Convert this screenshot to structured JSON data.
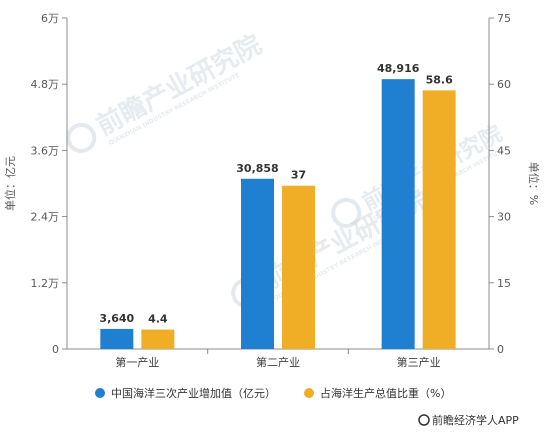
{
  "chart_data": {
    "type": "bar",
    "categories": [
      "第一产业",
      "第二产业",
      "第三产业"
    ],
    "series": [
      {
        "name": "中国海洋三次产业增加值（亿元）",
        "values": [
          3640,
          30858,
          48916
        ],
        "labels": [
          "3,640",
          "30,858",
          "48,916"
        ],
        "axis": "left",
        "color": "#1f7fd0"
      },
      {
        "name": "占海洋生产总值比重（%）",
        "values": [
          4.4,
          37,
          58.6
        ],
        "labels": [
          "4.4",
          "37",
          "58.6"
        ],
        "axis": "right",
        "color": "#f0ae27"
      }
    ],
    "y_left": {
      "label": "单位：亿元",
      "range": [
        0,
        60000
      ],
      "ticks": [
        0,
        12000,
        24000,
        36000,
        48000,
        60000
      ],
      "tick_labels": [
        "0",
        "1.2万",
        "2.4万",
        "3.6万",
        "4.8万",
        "6万"
      ]
    },
    "y_right": {
      "label": "单位：%",
      "range": [
        0,
        75
      ],
      "ticks": [
        0,
        15,
        30,
        45,
        60,
        75
      ],
      "tick_labels": [
        "0",
        "15",
        "30",
        "45",
        "60",
        "75"
      ]
    },
    "grid": false,
    "legend_position": "bottom"
  },
  "watermark": {
    "text": "前瞻产业研究院",
    "subtext": "QIANZHAN INDUSTRY RESEARCH INSTITUTE"
  },
  "source": {
    "text": "@前瞻经济学人APP"
  }
}
